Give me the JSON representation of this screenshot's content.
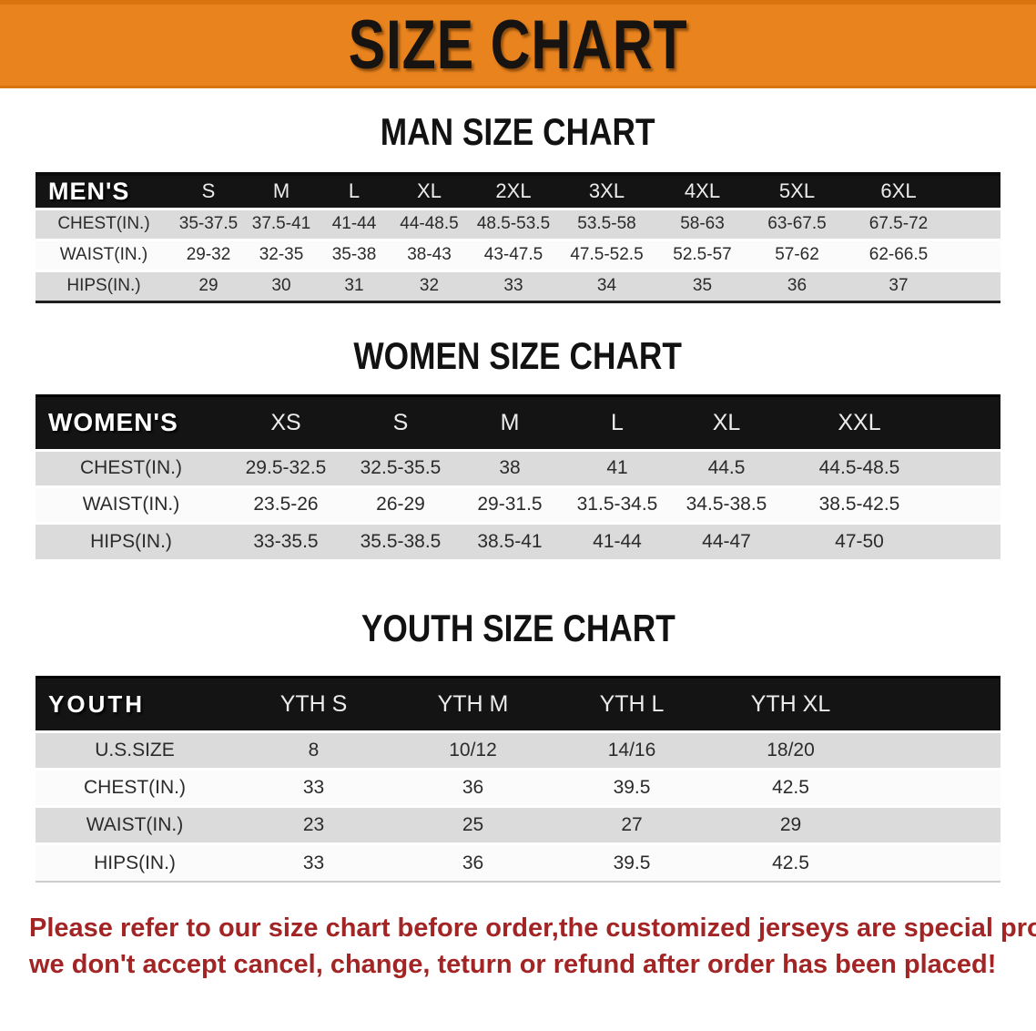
{
  "banner": {
    "title": "SIZE CHART",
    "background_color": "#E8831E"
  },
  "sections": [
    {
      "heading": "MAN SIZE CHART",
      "table": {
        "header_label": "MEN'S",
        "columns": [
          "S",
          "M",
          "L",
          "XL",
          "2XL",
          "3XL",
          "4XL",
          "5XL",
          "6XL"
        ],
        "rows": [
          {
            "label": "CHEST(IN.)",
            "values": [
              "35-37.5",
              "37.5-41",
              "41-44",
              "44-48.5",
              "48.5-53.5",
              "53.5-58",
              "58-63",
              "63-67.5",
              "67.5-72"
            ]
          },
          {
            "label": "WAIST(IN.)",
            "values": [
              "29-32",
              "32-35",
              "35-38",
              "38-43",
              "43-47.5",
              "47.5-52.5",
              "52.5-57",
              "57-62",
              "62-66.5"
            ]
          },
          {
            "label": "HIPS(IN.)",
            "values": [
              "29",
              "30",
              "31",
              "32",
              "33",
              "34",
              "35",
              "36",
              "37"
            ]
          }
        ]
      }
    },
    {
      "heading": "WOMEN SIZE CHART",
      "table": {
        "header_label": "WOMEN'S",
        "columns": [
          "XS",
          "S",
          "M",
          "L",
          "XL",
          "XXL"
        ],
        "rows": [
          {
            "label": "CHEST(IN.)",
            "values": [
              "29.5-32.5",
              "32.5-35.5",
              "38",
              "41",
              "44.5",
              "44.5-48.5"
            ]
          },
          {
            "label": "WAIST(IN.)",
            "values": [
              "23.5-26",
              "26-29",
              "29-31.5",
              "31.5-34.5",
              "34.5-38.5",
              "38.5-42.5"
            ]
          },
          {
            "label": "HIPS(IN.)",
            "values": [
              "33-35.5",
              "35.5-38.5",
              "38.5-41",
              "41-44",
              "44-47",
              "47-50"
            ]
          }
        ]
      }
    },
    {
      "heading": "YOUTH SIZE CHART",
      "table": {
        "header_label": "YOUTH",
        "columns": [
          "YTH S",
          "YTH M",
          "YTH L",
          "YTH XL"
        ],
        "rows": [
          {
            "label": "U.S.SIZE",
            "values": [
              "8",
              "10/12",
              "14/16",
              "18/20"
            ]
          },
          {
            "label": "CHEST(IN.)",
            "values": [
              "33",
              "36",
              "39.5",
              "42.5"
            ]
          },
          {
            "label": "WAIST(IN.)",
            "values": [
              "23",
              "25",
              "27",
              "29"
            ]
          },
          {
            "label": "HIPS(IN.)",
            "values": [
              "33",
              "36",
              "39.5",
              "42.5"
            ]
          }
        ]
      }
    }
  ],
  "footer": {
    "line1": "Please refer to our size chart before order,the customized jerseys are special products,",
    "line2": "we don't accept cancel, change, teturn or refund after order has been placed!",
    "text_color": "#A32424"
  },
  "colors": {
    "banner_orange": "#E8831E",
    "header_black": "#141414",
    "row_gray": "#DBDBDB",
    "row_white": "#FBFBFB",
    "disclaimer_red": "#A32424"
  }
}
